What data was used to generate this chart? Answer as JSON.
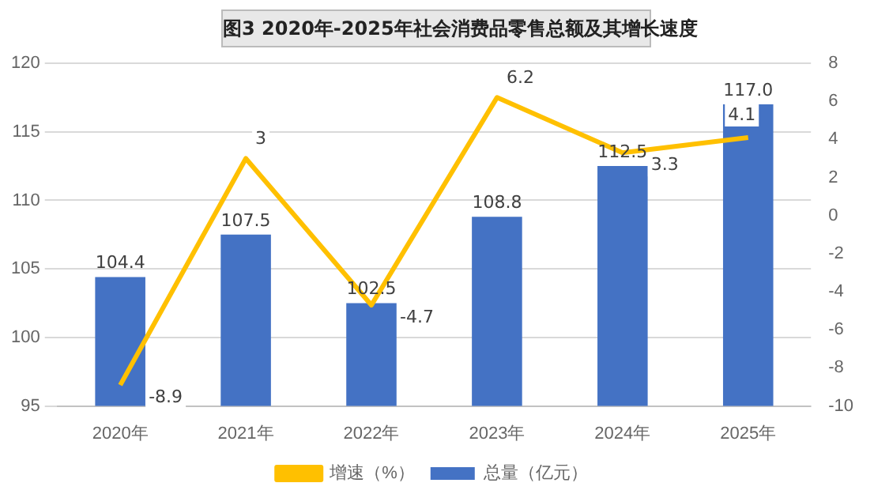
{
  "chart_data": {
    "type": "bar",
    "title": "图3  2020年-2025年社会消费品零售总额及其增长速度",
    "categories": [
      "2020年",
      "2021年",
      "2022年",
      "2023年",
      "2024年",
      "2025年"
    ],
    "series": [
      {
        "name": "总量（亿元）",
        "color": "#4472c4",
        "values": [
          104.4,
          107.5,
          102.5,
          108.8,
          112.5,
          117.0
        ],
        "value_labels": [
          "104.4",
          "107.5",
          "102.5",
          "108.8",
          "112.5",
          "117.0"
        ]
      },
      {
        "name": "增速（%）",
        "type": "line",
        "axis": "y2",
        "color": "#ffc000",
        "values": [
          -8.9,
          3,
          -4.7,
          6.2,
          3.3,
          4.1
        ],
        "value_labels": [
          "-8.9",
          "3",
          "-4.7",
          "6.2",
          "3.3",
          "4.1"
        ]
      }
    ],
    "ylim": [
      95,
      120
    ],
    "yticks": [
      95,
      100,
      105,
      110,
      115,
      120
    ],
    "y2lim": [
      -10,
      8
    ],
    "y2ticks": [
      -10,
      -8,
      -6,
      -4,
      -2,
      0,
      2,
      4,
      6,
      8
    ],
    "grid": "y",
    "legend": "bottom",
    "marker": "none",
    "line_style": "solid"
  }
}
